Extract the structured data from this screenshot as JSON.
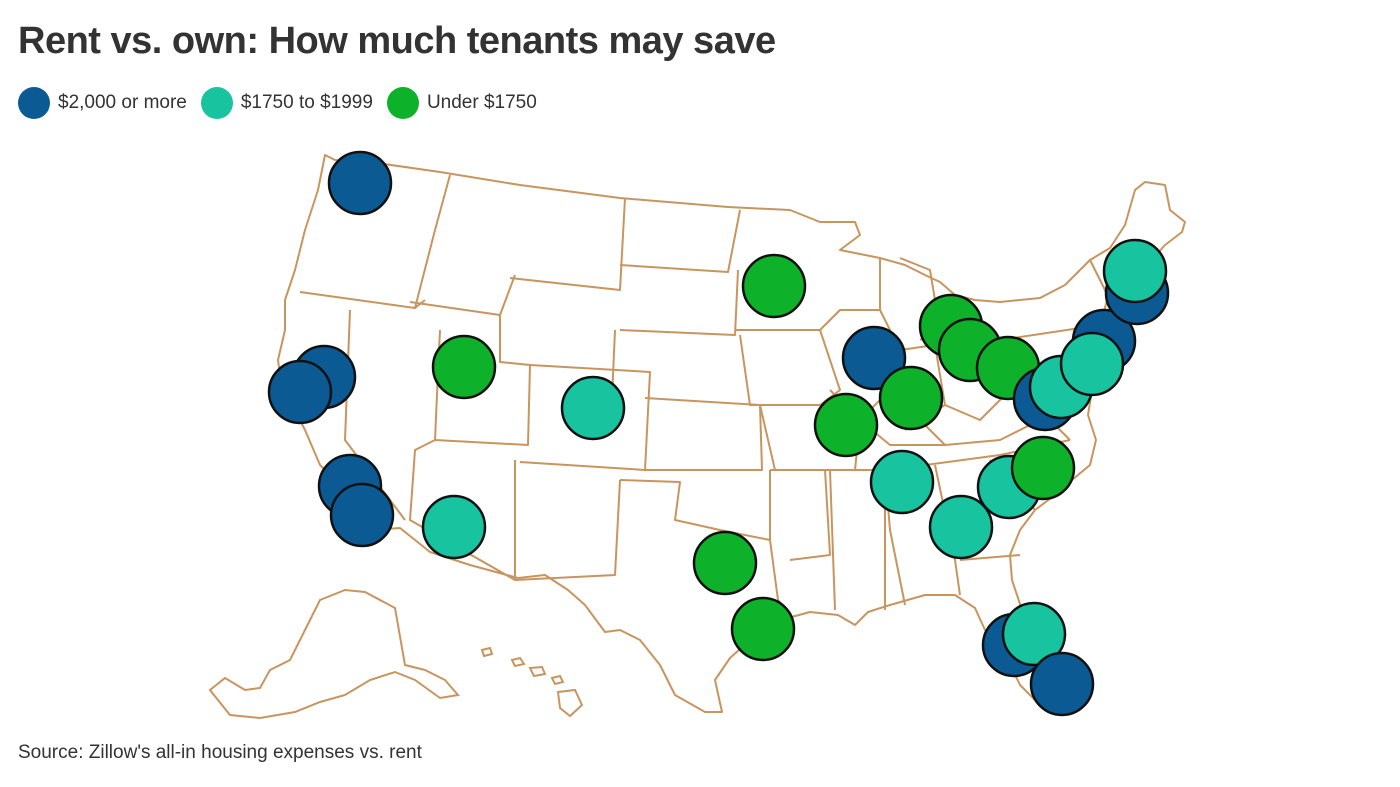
{
  "title": "Rent vs. own: How much tenants may save",
  "legend": [
    {
      "key": "high",
      "label": "$2,000 or more",
      "color": "#0b5a94"
    },
    {
      "key": "mid",
      "label": "$1750 to $1999",
      "color": "#18c3a0"
    },
    {
      "key": "low",
      "label": "Under $1750",
      "color": "#0db12a"
    }
  ],
  "source": "Source: Zillow's all-in housing expenses vs. rent",
  "map_style": {
    "land_fill": "#ffffff",
    "border_color": "#c8955f",
    "marker_outline": "#111111"
  },
  "markers": [
    {
      "region": "Seattle, WA",
      "tier": "high"
    },
    {
      "region": "San Francisco, CA",
      "tier": "high"
    },
    {
      "region": "San Jose, CA",
      "tier": "high"
    },
    {
      "region": "Los Angeles, CA",
      "tier": "high"
    },
    {
      "region": "San Diego, CA",
      "tier": "high"
    },
    {
      "region": "Salt Lake City, UT",
      "tier": "low"
    },
    {
      "region": "Denver, CO",
      "tier": "mid"
    },
    {
      "region": "Phoenix, AZ",
      "tier": "mid"
    },
    {
      "region": "Dallas, TX",
      "tier": "low"
    },
    {
      "region": "Houston, TX",
      "tier": "low"
    },
    {
      "region": "Minneapolis, MN",
      "tier": "low"
    },
    {
      "region": "Chicago, IL",
      "tier": "high"
    },
    {
      "region": "St. Louis, MO",
      "tier": "low"
    },
    {
      "region": "Indianapolis, IN",
      "tier": "low"
    },
    {
      "region": "Detroit, MI",
      "tier": "low"
    },
    {
      "region": "Toledo, OH",
      "tier": "low"
    },
    {
      "region": "Cleveland, OH",
      "tier": "low"
    },
    {
      "region": "Nashville, TN",
      "tier": "mid"
    },
    {
      "region": "Atlanta, GA",
      "tier": "mid"
    },
    {
      "region": "Charlotte, NC",
      "tier": "mid"
    },
    {
      "region": "Raleigh, NC",
      "tier": "low"
    },
    {
      "region": "Washington, DC",
      "tier": "high"
    },
    {
      "region": "Baltimore, MD",
      "tier": "mid"
    },
    {
      "region": "New York, NY",
      "tier": "high"
    },
    {
      "region": "Philadelphia, PA",
      "tier": "mid"
    },
    {
      "region": "Boston, MA",
      "tier": "high"
    },
    {
      "region": "Providence, RI",
      "tier": "mid"
    },
    {
      "region": "Tampa, FL",
      "tier": "high"
    },
    {
      "region": "Orlando, FL",
      "tier": "mid"
    },
    {
      "region": "Miami, FL",
      "tier": "high"
    }
  ]
}
